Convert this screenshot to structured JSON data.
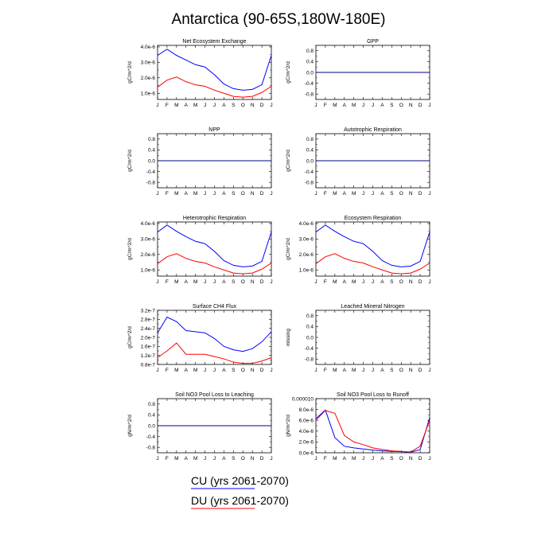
{
  "figure": {
    "title": "Antarctica (90-65S,180W-180E)",
    "month_labels": [
      "J",
      "F",
      "M",
      "A",
      "M",
      "J",
      "J",
      "A",
      "S",
      "O",
      "N",
      "D",
      "J"
    ],
    "colors": {
      "CU": "#0000ff",
      "DU": "#ff0000",
      "zero_line": "#000080",
      "axis": "#000000"
    }
  },
  "legend": {
    "cu_label": "CU (yrs 2061-2070)",
    "du_label": "DU (yrs 2061-2070)"
  },
  "chart_data": [
    {
      "type": "line",
      "title": "Net Ecosystem Exchange",
      "ylabel": "gC/m^2/d",
      "ylim": [
        6e-07,
        4.1e-06
      ],
      "yticks": [
        1e-06,
        2e-06,
        3e-06,
        4e-06
      ],
      "yticklabels": [
        "1.0e-6",
        "2.0e-6",
        "3.0e-6",
        "4.0e-6"
      ],
      "series": [
        {
          "name": "CU",
          "values": [
            3.45e-06,
            3.85e-06,
            3.45e-06,
            3.15e-06,
            2.85e-06,
            2.7e-06,
            2.2e-06,
            1.6e-06,
            1.3e-06,
            1.2e-06,
            1.25e-06,
            1.55e-06,
            3.45e-06
          ]
        },
        {
          "name": "DU",
          "values": [
            1.4e-06,
            1.85e-06,
            2.05e-06,
            1.75e-06,
            1.55e-06,
            1.45e-06,
            1.2e-06,
            1e-06,
            8e-07,
            7.5e-07,
            8e-07,
            1.05e-06,
            1.45e-06
          ]
        }
      ]
    },
    {
      "type": "line",
      "title": "GPP",
      "ylabel": "gC/m^2/d",
      "ylim": [
        -1.0,
        1.0
      ],
      "yticks": [
        -0.8,
        -0.4,
        0.0,
        0.4,
        0.8
      ],
      "yticklabels": [
        "-0.8",
        "-0.4",
        "0.0",
        "0.4",
        "0.8"
      ],
      "zero_line": true,
      "series": [
        {
          "name": "CU",
          "values": [
            0,
            0,
            0,
            0,
            0,
            0,
            0,
            0,
            0,
            0,
            0,
            0,
            0
          ]
        },
        {
          "name": "DU",
          "values": [
            0,
            0,
            0,
            0,
            0,
            0,
            0,
            0,
            0,
            0,
            0,
            0,
            0
          ]
        }
      ]
    },
    {
      "type": "line",
      "title": "NPP",
      "ylabel": "gC/m^2/d",
      "ylim": [
        -1.0,
        1.0
      ],
      "yticks": [
        -0.8,
        -0.4,
        0.0,
        0.4,
        0.8
      ],
      "yticklabels": [
        "-0.8",
        "-0.4",
        "0.0",
        "0.4",
        "0.8"
      ],
      "zero_line": true,
      "series": [
        {
          "name": "CU",
          "values": [
            0,
            0,
            0,
            0,
            0,
            0,
            0,
            0,
            0,
            0,
            0,
            0,
            0
          ]
        },
        {
          "name": "DU",
          "values": [
            0,
            0,
            0,
            0,
            0,
            0,
            0,
            0,
            0,
            0,
            0,
            0,
            0
          ]
        }
      ]
    },
    {
      "type": "line",
      "title": "Autotrophic Respiration",
      "ylabel": "gC/m^2/d",
      "ylim": [
        -1.0,
        1.0
      ],
      "yticks": [
        -0.8,
        -0.4,
        0.0,
        0.4,
        0.8
      ],
      "yticklabels": [
        "-0.8",
        "-0.4",
        "0.0",
        "0.4",
        "0.8"
      ],
      "zero_line": true,
      "series": [
        {
          "name": "CU",
          "values": [
            0,
            0,
            0,
            0,
            0,
            0,
            0,
            0,
            0,
            0,
            0,
            0,
            0
          ]
        },
        {
          "name": "DU",
          "values": [
            0,
            0,
            0,
            0,
            0,
            0,
            0,
            0,
            0,
            0,
            0,
            0,
            0
          ]
        }
      ]
    },
    {
      "type": "line",
      "title": "Heterotrophic Respiration",
      "ylabel": "gC/m^2/d",
      "ylim": [
        6e-07,
        4.1e-06
      ],
      "yticks": [
        1e-06,
        2e-06,
        3e-06,
        4e-06
      ],
      "yticklabels": [
        "1.0e-6",
        "2.0e-6",
        "3.0e-6",
        "4.0e-6"
      ],
      "series": [
        {
          "name": "CU",
          "values": [
            3.45e-06,
            3.9e-06,
            3.5e-06,
            3.15e-06,
            2.85e-06,
            2.7e-06,
            2.2e-06,
            1.6e-06,
            1.3e-06,
            1.2e-06,
            1.25e-06,
            1.55e-06,
            3.45e-06
          ]
        },
        {
          "name": "DU",
          "values": [
            1.4e-06,
            1.85e-06,
            2.05e-06,
            1.75e-06,
            1.55e-06,
            1.45e-06,
            1.2e-06,
            1e-06,
            8e-07,
            7.5e-07,
            8e-07,
            1.05e-06,
            1.45e-06
          ]
        }
      ]
    },
    {
      "type": "line",
      "title": "Ecosystem Respiration",
      "ylabel": "gC/m^2/d",
      "ylim": [
        6e-07,
        4.1e-06
      ],
      "yticks": [
        1e-06,
        2e-06,
        3e-06,
        4e-06
      ],
      "yticklabels": [
        "1.0e-6",
        "2.0e-6",
        "3.0e-6",
        "4.0e-6"
      ],
      "series": [
        {
          "name": "CU",
          "values": [
            3.45e-06,
            3.9e-06,
            3.5e-06,
            3.15e-06,
            2.85e-06,
            2.7e-06,
            2.2e-06,
            1.6e-06,
            1.3e-06,
            1.2e-06,
            1.25e-06,
            1.55e-06,
            3.45e-06
          ]
        },
        {
          "name": "DU",
          "values": [
            1.4e-06,
            1.85e-06,
            2.05e-06,
            1.75e-06,
            1.55e-06,
            1.45e-06,
            1.2e-06,
            1e-06,
            8e-07,
            7.5e-07,
            8e-07,
            1.05e-06,
            1.45e-06
          ]
        }
      ]
    },
    {
      "type": "line",
      "title": "Surface CH4 Flux",
      "ylabel": "gC/m^2/d",
      "ylim": [
        8e-08,
        3.2e-07
      ],
      "yticks": [
        8e-08,
        1.2e-07,
        1.6e-07,
        2e-07,
        2.4e-07,
        2.8e-07,
        3.2e-07
      ],
      "yticklabels": [
        "0.8e-7",
        "1.2e-7",
        "1.6e-7",
        "2.0e-7",
        "2.4e-7",
        "2.8e-7",
        "3.2e-7"
      ],
      "series": [
        {
          "name": "CU",
          "values": [
            2.2e-07,
            2.9e-07,
            2.7e-07,
            2.3e-07,
            2.25e-07,
            2.2e-07,
            1.95e-07,
            1.6e-07,
            1.45e-07,
            1.38e-07,
            1.5e-07,
            1.8e-07,
            2.25e-07
          ]
        },
        {
          "name": "DU",
          "values": [
            1.1e-07,
            1.4e-07,
            1.75e-07,
            1.25e-07,
            1.25e-07,
            1.25e-07,
            1.15e-07,
            1.05e-07,
            9e-08,
            8.5e-08,
            8.5e-08,
            9.5e-08,
            1.1e-07
          ]
        }
      ]
    },
    {
      "type": "line",
      "title": "Leached Mineral Nitrogen",
      "ylabel": "missing",
      "ylim": [
        -1.0,
        1.0
      ],
      "yticks": [
        -0.8,
        -0.4,
        0.0,
        0.4,
        0.8
      ],
      "yticklabels": [
        "-0.8",
        "-0.4",
        "0.0",
        "0.4",
        "0.8"
      ],
      "zero_line": false,
      "series": []
    },
    {
      "type": "line",
      "title": "Soil NO3 Pool Loss to Leaching",
      "ylabel": "gN/m^2/d",
      "ylim": [
        -1.0,
        1.0
      ],
      "yticks": [
        -0.8,
        -0.4,
        0.0,
        0.4,
        0.8
      ],
      "yticklabels": [
        "-0.8",
        "-0.4",
        "0.0",
        "0.4",
        "0.8"
      ],
      "zero_line": true,
      "series": [
        {
          "name": "CU",
          "values": [
            0,
            0,
            0,
            0,
            0,
            0,
            0,
            0,
            0,
            0,
            0,
            0,
            0
          ]
        },
        {
          "name": "DU",
          "values": [
            0,
            0,
            0,
            0,
            0,
            0,
            0,
            0,
            0,
            0,
            0,
            0,
            0
          ]
        }
      ]
    },
    {
      "type": "line",
      "title": "Soil NO3 Pool Loss to Runoff",
      "ylabel": "gN/m^2/d",
      "ylim": [
        0,
        1e-05
      ],
      "yticks": [
        0,
        2e-06,
        4e-06,
        6e-06,
        8e-06,
        1e-05
      ],
      "yticklabels": [
        "0.0e-6",
        "2.0e-6",
        "4.0e-6",
        "6.0e-6",
        "8.0e-6",
        "0.000010"
      ],
      "series": [
        {
          "name": "CU",
          "values": [
            6.3e-06,
            7.9e-06,
            2.8e-06,
            1.2e-06,
            9e-07,
            7e-07,
            5e-07,
            3.5e-07,
            2.5e-07,
            2e-07,
            1e-07,
            6e-07,
            6.5e-06
          ]
        },
        {
          "name": "DU",
          "values": [
            6e-06,
            7.8e-06,
            7.3e-06,
            3.2e-06,
            2e-06,
            1.5e-06,
            9e-07,
            6e-07,
            3.5e-07,
            2.5e-07,
            1.5e-07,
            1.2e-06,
            6e-06
          ]
        }
      ]
    }
  ]
}
